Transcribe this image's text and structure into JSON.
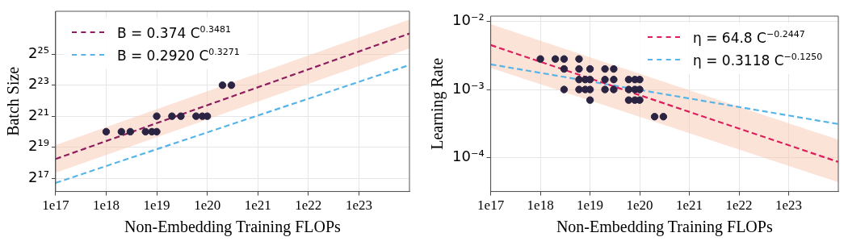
{
  "chart_data": [
    {
      "type": "scatter",
      "xlabel": "Non-Embedding Training FLOPs",
      "ylabel": "Batch Size",
      "log": "xy",
      "grid": true,
      "legend": "top left",
      "marker": "circle",
      "xlim": [
        1e+17,
        1e+24
      ],
      "xticks": [
        {
          "value": 1e+17,
          "label": "1e17"
        },
        {
          "value": 1e+18,
          "label": "1e18"
        },
        {
          "value": 1e+19,
          "label": "1e19"
        },
        {
          "value": 1e+20,
          "label": "1e20"
        },
        {
          "value": 1e+21,
          "label": "1e21"
        },
        {
          "value": 1e+22,
          "label": "1e22"
        },
        {
          "value": 1e+23,
          "label": "1e23"
        }
      ],
      "ylim": [
        72215,
        229000000
      ],
      "yticks": [
        {
          "value": 131072,
          "label": "2¹⁷"
        },
        {
          "value": 524288,
          "label": "2¹⁹"
        },
        {
          "value": 2097152,
          "label": "2²¹"
        },
        {
          "value": 8388608,
          "label": "2²³"
        },
        {
          "value": 33554432,
          "label": "2²⁵"
        }
      ],
      "series": [
        {
          "type": "line",
          "name": "B = 0.374 C$^{0.3481}$",
          "color": "#8c1c5e",
          "line_style": "dashed",
          "marker": "none",
          "x": [
            1e+17,
            1e+24
          ],
          "values": [
            309450,
            84590000
          ],
          "lower": [
            166900,
            43700000
          ],
          "upper": [
            577000,
            158000000
          ]
        },
        {
          "type": "line",
          "name": "B = 0.2920 C$^{0.3271}$",
          "color": "#56b4e9",
          "line_style": "dashed",
          "marker": "none",
          "x": [
            1e+17,
            1e+24
          ],
          "values": [
            106200,
            20697000
          ]
        },
        {
          "type": "scatter",
          "color": "#2a2342",
          "x": [
            1e+18,
            2e+18,
            3e+18,
            6e+18,
            8e+18,
            1e+19,
            1e+19,
            2e+19,
            3e+19,
            6e+19,
            8e+19,
            1e+20,
            2e+20,
            3e+20
          ],
          "values": [
            1048576,
            1048576,
            1048576,
            1048576,
            1048576,
            1048576,
            2097152,
            2097152,
            2097152,
            2097152,
            2097152,
            2097152,
            8388608,
            8388608
          ]
        }
      ]
    },
    {
      "type": "scatter",
      "xlabel": "Non-Embedding Training FLOPs",
      "ylabel": "Learning Rate",
      "log": "xy",
      "grid": true,
      "legend": "top right",
      "marker": "circle",
      "xlim": [
        1e+17,
        1e+24
      ],
      "xticks": [
        {
          "value": 1e+17,
          "label": "1e17"
        },
        {
          "value": 1e+18,
          "label": "1e18"
        },
        {
          "value": 1e+19,
          "label": "1e19"
        },
        {
          "value": 1e+20,
          "label": "1e20"
        },
        {
          "value": 1e+21,
          "label": "1e21"
        },
        {
          "value": 1e+22,
          "label": "1e22"
        },
        {
          "value": 1e+23,
          "label": "1e23"
        }
      ],
      "ylim": [
        3.2e-05,
        0.0119
      ],
      "yticks": [
        {
          "value": 0.0001,
          "label": "10⁻⁴"
        },
        {
          "value": 0.001,
          "label": "10⁻³"
        },
        {
          "value": 0.01,
          "label": "10⁻²"
        }
      ],
      "series": [
        {
          "type": "line",
          "name": "η = 64.8 C$^{−0.2447}$",
          "color": "#dc1e5a",
          "line_style": "dashed",
          "marker": "none",
          "x": [
            1e+17,
            1e+24
          ],
          "values": [
            0.00448,
            8.685e-05
          ],
          "lower": [
            0.00208,
            4.38e-05
          ],
          "upper": [
            0.00904,
            0.000184
          ]
        },
        {
          "type": "line",
          "name": "η = 0.3118 C$^{−0.1250}$",
          "color": "#56b4e9",
          "line_style": "dashed",
          "marker": "none",
          "x": [
            1e+17,
            1e+24
          ],
          "values": [
            0.002338,
            0.0003118
          ]
        },
        {
          "type": "scatter",
          "color": "#2a2342",
          "x": [
            1e+18,
            2e+18,
            3e+18,
            3e+18,
            3e+18,
            6e+18,
            6e+18,
            6e+18,
            6e+18,
            8e+18,
            8e+18,
            1e+19,
            1e+19,
            1e+19,
            1e+19,
            2e+19,
            2e+19,
            2e+19,
            3e+19,
            3e+19,
            3e+19,
            6e+19,
            6e+19,
            6e+19,
            8e+19,
            8e+19,
            8e+19,
            1e+20,
            1e+20,
            1e+20,
            2e+20,
            3e+20
          ],
          "values": [
            0.0028,
            0.0028,
            0.0028,
            0.002,
            0.001,
            0.0028,
            0.002,
            0.0014,
            0.001,
            0.0014,
            0.001,
            0.002,
            0.0014,
            0.001,
            0.0007,
            0.002,
            0.0014,
            0.001,
            0.002,
            0.0014,
            0.001,
            0.0014,
            0.001,
            0.0007,
            0.0014,
            0.001,
            0.0007,
            0.0014,
            0.001,
            0.0007,
            0.0004,
            0.0004
          ]
        }
      ]
    }
  ]
}
